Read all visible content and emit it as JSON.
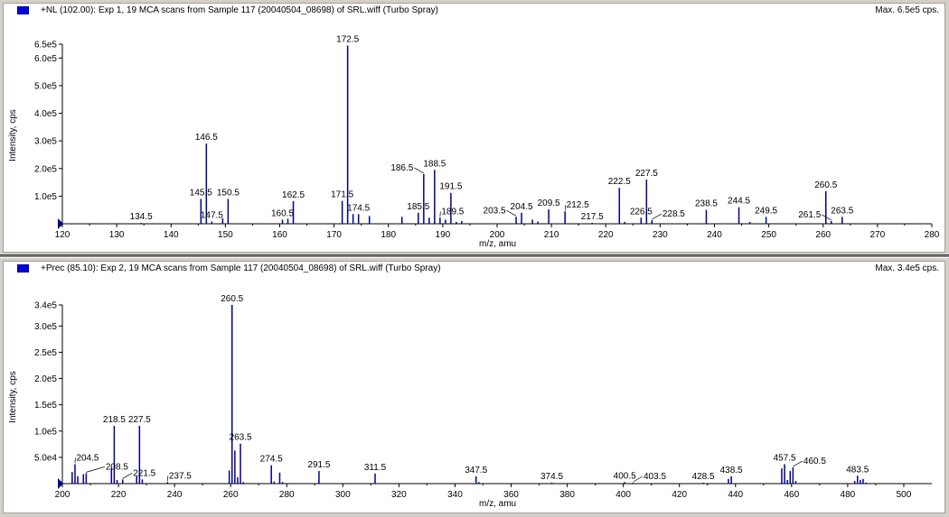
{
  "colors": {
    "peak": "#00008b",
    "legend": "#0000e0",
    "axis": "#000000"
  },
  "chart_data": [
    {
      "type": "bar",
      "title": "+NL (102.00): Exp 1, 19 MCA scans from Sample 117 (20040504_08698) of SRL.wiff (Turbo Spray)",
      "max_label": "Max. 6.5e5 cps.",
      "xlabel": "m/z, amu",
      "ylabel": "Intensity, cps",
      "xlim": [
        120,
        280
      ],
      "ylim": [
        0,
        650000
      ],
      "xticks": [
        "120",
        "130",
        "140",
        "150",
        "160",
        "170",
        "180",
        "190",
        "200",
        "210",
        "220",
        "230",
        "240",
        "250",
        "260",
        "270",
        "280"
      ],
      "yticks": [
        {
          "v": 100000,
          "l": "1.0e5"
        },
        {
          "v": 200000,
          "l": "2.0e5"
        },
        {
          "v": 300000,
          "l": "3.0e5"
        },
        {
          "v": 400000,
          "l": "4.0e5"
        },
        {
          "v": 500000,
          "l": "5.0e5"
        },
        {
          "v": 600000,
          "l": "6.0e5"
        },
        {
          "v": 650000,
          "l": "6.5e5"
        }
      ],
      "peaks": [
        {
          "x": 134.5,
          "y": 1000,
          "label": "134.5"
        },
        {
          "x": 145.5,
          "y": 90000,
          "label": "145.5"
        },
        {
          "x": 146.5,
          "y": 290000,
          "label": "146.5"
        },
        {
          "x": 147.5,
          "y": 8000,
          "label": "147.5"
        },
        {
          "x": 149.5,
          "y": 20000
        },
        {
          "x": 150.5,
          "y": 90000,
          "label": "150.5"
        },
        {
          "x": 160.5,
          "y": 15000,
          "label": "160.5"
        },
        {
          "x": 161.5,
          "y": 18000
        },
        {
          "x": 162.5,
          "y": 82000,
          "label": "162.5"
        },
        {
          "x": 171.5,
          "y": 83000,
          "label": "171.5"
        },
        {
          "x": 172.5,
          "y": 645000,
          "label": "172.5"
        },
        {
          "x": 173.5,
          "y": 35000
        },
        {
          "x": 174.5,
          "y": 35000,
          "label": "174.5"
        },
        {
          "x": 176.5,
          "y": 28000
        },
        {
          "x": 182.5,
          "y": 25000
        },
        {
          "x": 185.5,
          "y": 40000,
          "label": "185.5"
        },
        {
          "x": 186.5,
          "y": 180000,
          "label": "186.5"
        },
        {
          "x": 187.5,
          "y": 22000
        },
        {
          "x": 188.5,
          "y": 195000,
          "label": "188.5"
        },
        {
          "x": 189.5,
          "y": 22000,
          "label": "189.5"
        },
        {
          "x": 190.5,
          "y": 15000
        },
        {
          "x": 191.5,
          "y": 112000,
          "label": "191.5"
        },
        {
          "x": 192.5,
          "y": 7000
        },
        {
          "x": 193.5,
          "y": 10000
        },
        {
          "x": 203.5,
          "y": 25000,
          "label": "203.5"
        },
        {
          "x": 204.5,
          "y": 40000,
          "label": "204.5"
        },
        {
          "x": 206.5,
          "y": 15000
        },
        {
          "x": 207.5,
          "y": 8000
        },
        {
          "x": 209.5,
          "y": 52000,
          "label": "209.5"
        },
        {
          "x": 212.5,
          "y": 45000,
          "label": "212.5"
        },
        {
          "x": 217.5,
          "y": 1500,
          "label": "217.5"
        },
        {
          "x": 222.5,
          "y": 130000,
          "label": "222.5"
        },
        {
          "x": 223.5,
          "y": 7000
        },
        {
          "x": 226.5,
          "y": 22000,
          "label": "226.5"
        },
        {
          "x": 227.5,
          "y": 160000,
          "label": "227.5"
        },
        {
          "x": 228.5,
          "y": 13000,
          "label": "228.5"
        },
        {
          "x": 238.5,
          "y": 50000,
          "label": "238.5"
        },
        {
          "x": 244.5,
          "y": 60000,
          "label": "244.5"
        },
        {
          "x": 246.5,
          "y": 7000
        },
        {
          "x": 249.5,
          "y": 25000,
          "label": "249.5"
        },
        {
          "x": 260.5,
          "y": 118000,
          "label": "260.5"
        },
        {
          "x": 261.5,
          "y": 10000,
          "label": "261.5"
        },
        {
          "x": 263.5,
          "y": 25000,
          "label": "263.5"
        }
      ]
    },
    {
      "type": "bar",
      "title": "+Prec (85.10): Exp 2, 19 MCA scans from Sample 117 (20040504_08698) of SRL.wiff (Turbo Spray)",
      "max_label": "Max. 3.4e5 cps.",
      "xlabel": "m/z, amu",
      "ylabel": "Intensity, cps",
      "xlim": [
        200,
        510
      ],
      "ylim": [
        0,
        340000
      ],
      "xticks": [
        "200",
        "220",
        "240",
        "260",
        "280",
        "300",
        "320",
        "340",
        "360",
        "380",
        "400",
        "420",
        "440",
        "460",
        "480",
        "500"
      ],
      "yticks": [
        {
          "v": 50000,
          "l": "5.0e4"
        },
        {
          "v": 100000,
          "l": "1.0e5"
        },
        {
          "v": 150000,
          "l": "1.5e5"
        },
        {
          "v": 200000,
          "l": "2.0e5"
        },
        {
          "v": 250000,
          "l": "2.5e5"
        },
        {
          "v": 300000,
          "l": "3.0e5"
        },
        {
          "v": 340000,
          "l": "3.4e5"
        }
      ],
      "peaks": [
        {
          "x": 203.5,
          "y": 22000
        },
        {
          "x": 204.5,
          "y": 37000,
          "label": "204.5"
        },
        {
          "x": 205.5,
          "y": 14000
        },
        {
          "x": 207.5,
          "y": 18000
        },
        {
          "x": 208.5,
          "y": 20000,
          "label": "208.5"
        },
        {
          "x": 217.5,
          "y": 30000
        },
        {
          "x": 218.5,
          "y": 110000,
          "label": "218.5"
        },
        {
          "x": 219.5,
          "y": 7000
        },
        {
          "x": 221.5,
          "y": 8000,
          "label": "221.5"
        },
        {
          "x": 226.5,
          "y": 14000
        },
        {
          "x": 227.5,
          "y": 110000,
          "label": "227.5"
        },
        {
          "x": 228.5,
          "y": 8000
        },
        {
          "x": 237.5,
          "y": 3000,
          "label": "237.5"
        },
        {
          "x": 259.5,
          "y": 25000
        },
        {
          "x": 260.5,
          "y": 340000,
          "label": "260.5"
        },
        {
          "x": 261.5,
          "y": 63000
        },
        {
          "x": 262.5,
          "y": 12000
        },
        {
          "x": 263.5,
          "y": 76000,
          "label": "263.5"
        },
        {
          "x": 264.5,
          "y": 3000
        },
        {
          "x": 274.5,
          "y": 35000,
          "label": "274.5"
        },
        {
          "x": 275.5,
          "y": 4000
        },
        {
          "x": 277.5,
          "y": 21000
        },
        {
          "x": 278.5,
          "y": 3000
        },
        {
          "x": 291.5,
          "y": 24000,
          "label": "291.5"
        },
        {
          "x": 311.5,
          "y": 19000,
          "label": "311.5"
        },
        {
          "x": 347.5,
          "y": 14000,
          "label": "347.5"
        },
        {
          "x": 348.5,
          "y": 3000
        },
        {
          "x": 374.5,
          "y": 800,
          "label": "374.5"
        },
        {
          "x": 400.5,
          "y": 3000,
          "label": "400.5"
        },
        {
          "x": 403.5,
          "y": 1000,
          "label": "403.5"
        },
        {
          "x": 428.5,
          "y": 1000,
          "label": "428.5"
        },
        {
          "x": 437.5,
          "y": 9000
        },
        {
          "x": 438.5,
          "y": 14000,
          "label": "438.5"
        },
        {
          "x": 456.5,
          "y": 29000
        },
        {
          "x": 457.5,
          "y": 37000,
          "label": "457.5"
        },
        {
          "x": 458.5,
          "y": 7000
        },
        {
          "x": 459.5,
          "y": 24000
        },
        {
          "x": 460.5,
          "y": 31000,
          "label": "460.5"
        },
        {
          "x": 461.5,
          "y": 5000
        },
        {
          "x": 482.5,
          "y": 5000
        },
        {
          "x": 483.5,
          "y": 15000,
          "label": "483.5"
        },
        {
          "x": 484.5,
          "y": 7000
        },
        {
          "x": 485.5,
          "y": 9000
        },
        {
          "x": 486.5,
          "y": 2000
        }
      ]
    }
  ]
}
